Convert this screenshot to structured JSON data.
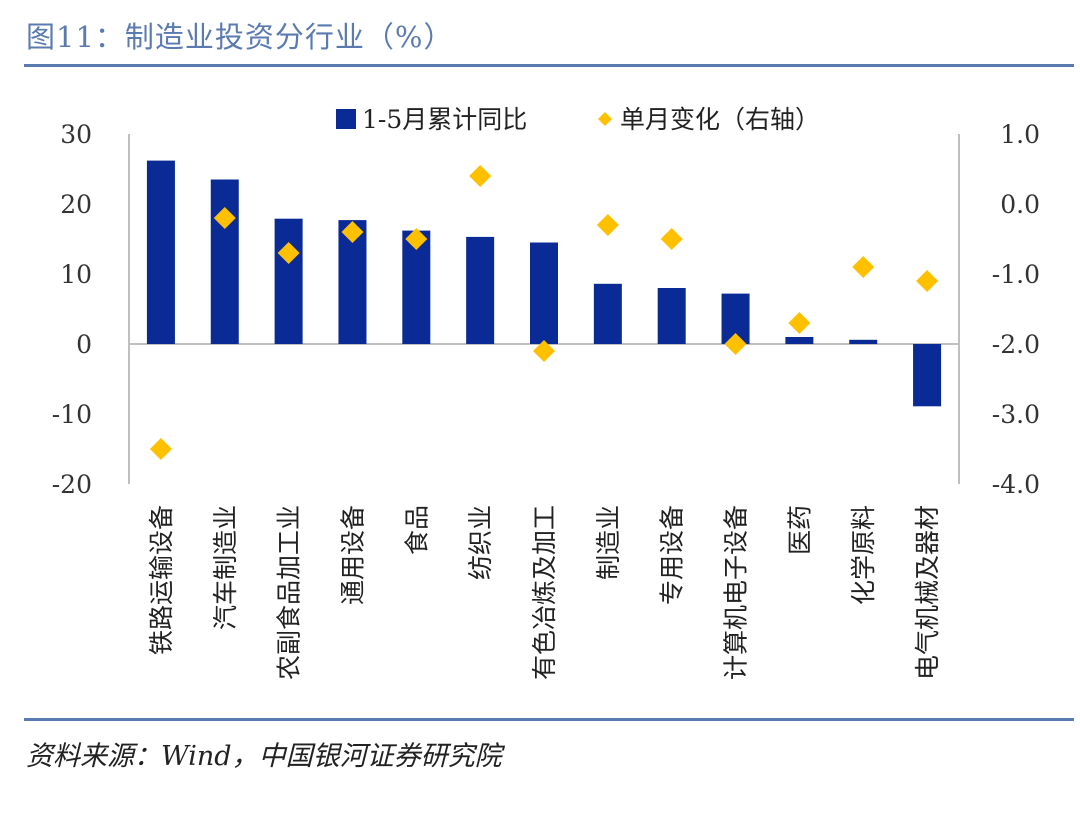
{
  "header": {
    "title": "图11：制造业投资分行业（%）"
  },
  "footer": {
    "source": "资料来源：Wind，中国银河证券研究院"
  },
  "chart_data": {
    "type": "bar",
    "categories": [
      "铁路运输设备",
      "汽车制造业",
      "农副食品加工业",
      "通用设备",
      "食品",
      "纺织业",
      "有色冶炼及加工",
      "制造业",
      "专用设备",
      "计算机电子设备",
      "医药",
      "化学原料",
      "电气机械及器材"
    ],
    "series": [
      {
        "name": "1-5月累计同比",
        "type": "bar",
        "axis": "left",
        "color": "#0a2b96",
        "values": [
          26.2,
          23.5,
          17.9,
          17.7,
          16.2,
          15.3,
          14.5,
          8.6,
          8.0,
          7.2,
          1.0,
          0.6,
          -8.9
        ]
      },
      {
        "name": "单月变化（右轴）",
        "type": "scatter",
        "marker": "diamond",
        "axis": "right",
        "color": "#ffc000",
        "values": [
          -3.5,
          -0.2,
          -0.7,
          -0.4,
          -0.5,
          0.4,
          -2.1,
          -0.3,
          -0.5,
          -2.0,
          -1.7,
          -0.9,
          -1.1
        ]
      }
    ],
    "left_axis": {
      "ylim": [
        -20,
        30
      ],
      "ticks": [
        "30",
        "20",
        "10",
        "0",
        "-10",
        "-20"
      ]
    },
    "right_axis": {
      "ylim": [
        -4.0,
        1.0
      ],
      "ticks": [
        "1.0",
        "0.0",
        "-1.0",
        "-2.0",
        "-3.0",
        "-4.0"
      ]
    },
    "legend_position": "top",
    "grid": false
  }
}
